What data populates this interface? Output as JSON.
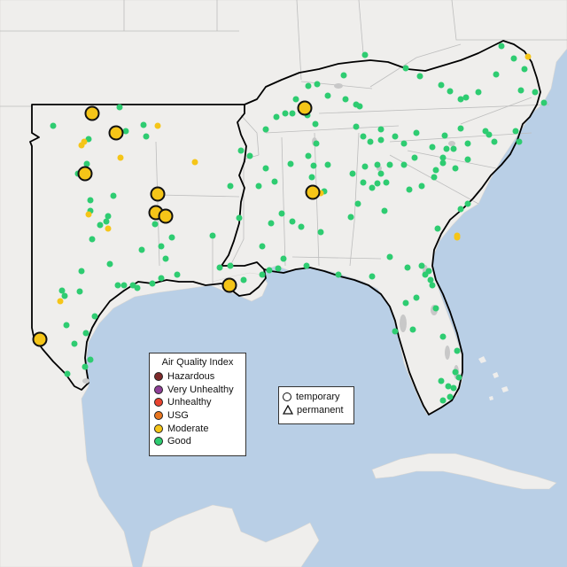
{
  "aqi_legend": {
    "title": "Air Quality Index",
    "items": [
      {
        "label": "Hazardous",
        "color": "#7e2a2a"
      },
      {
        "label": "Very Unhealthy",
        "color": "#8f3f97"
      },
      {
        "label": "Unhealthy",
        "color": "#e8432f"
      },
      {
        "label": "USG",
        "color": "#e8761f"
      },
      {
        "label": "Moderate",
        "color": "#f5c518"
      },
      {
        "label": "Good",
        "color": "#2ecc71"
      }
    ]
  },
  "shape_legend": {
    "items": [
      {
        "label": "temporary",
        "shape": "circle-icon"
      },
      {
        "label": "permanent",
        "shape": "triangle-icon"
      }
    ]
  },
  "colors": {
    "water": "#b9cfe6",
    "land": "#efeeec",
    "border": "#000000",
    "good": "#2ecc71",
    "moderate": "#f5c518"
  }
}
